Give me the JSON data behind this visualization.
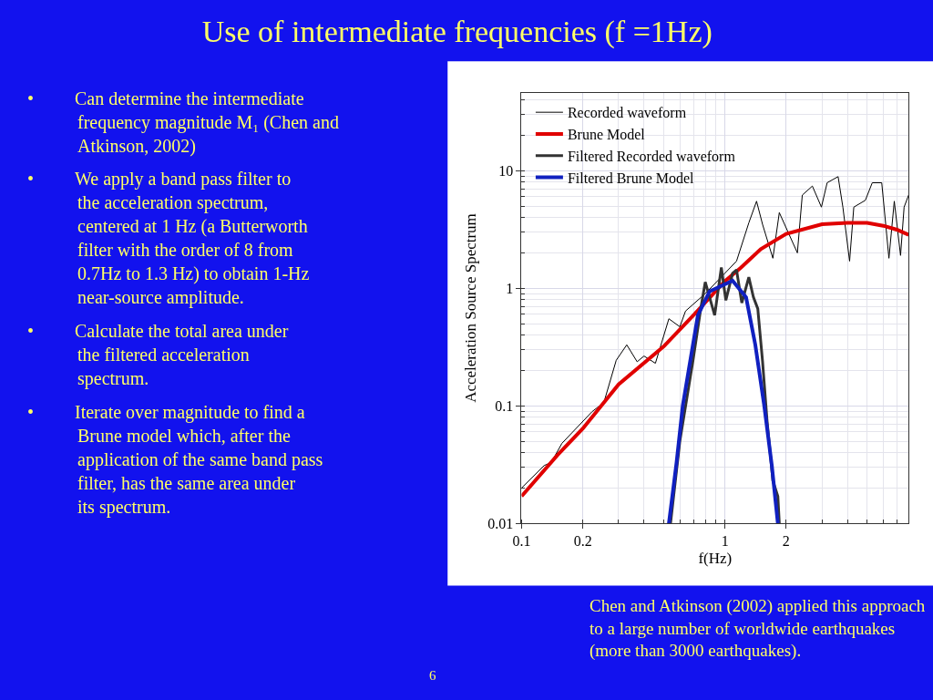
{
  "chart_data": {
    "type": "line",
    "title": "Use of intermediate frequencies (f =1Hz)",
    "xlabel": "f(Hz)",
    "ylabel": "Acceleration Source Spectrum",
    "log": "xy",
    "grid": true,
    "legend": "top left",
    "xlim": [
      0.1,
      8
    ],
    "xticks": [
      0.1,
      0.2,
      1,
      2
    ],
    "ylim": [
      0.01,
      46
    ],
    "yticks": [
      0.01,
      0.1,
      1,
      10
    ],
    "series": [
      {
        "name": "Recorded waveform",
        "color": "#000000",
        "x": [
          0.1,
          0.129,
          0.14,
          0.158,
          0.222,
          0.254,
          0.292,
          0.329,
          0.37,
          0.4,
          0.455,
          0.53,
          0.6,
          0.64,
          0.8,
          1.14,
          1.31,
          1.43,
          1.53,
          1.72,
          1.85,
          2.27,
          2.4,
          2.69,
          2.98,
          3.18,
          3.6,
          3.8,
          4.1,
          4.3,
          4.9,
          5.3,
          5.9,
          6.4,
          6.8,
          7.3,
          7.6,
          8.0
        ],
        "values": [
          0.02,
          0.031,
          0.033,
          0.048,
          0.089,
          0.107,
          0.244,
          0.33,
          0.237,
          0.265,
          0.23,
          0.55,
          0.47,
          0.64,
          0.9,
          1.7,
          3.6,
          5.5,
          3.5,
          1.8,
          4.4,
          2.0,
          6.2,
          7.4,
          4.9,
          7.9,
          8.9,
          4.9,
          1.7,
          4.9,
          5.6,
          7.9,
          7.9,
          1.8,
          5.5,
          1.9,
          4.9,
          6.2
        ]
      },
      {
        "name": "Brune Model",
        "color": "#e00000",
        "x": [
          0.1,
          0.15,
          0.2,
          0.3,
          0.5,
          0.7,
          1,
          1.2,
          1.5,
          2,
          3,
          4,
          5,
          6,
          7,
          8
        ],
        "values": [
          0.017,
          0.038,
          0.064,
          0.152,
          0.32,
          0.59,
          1.15,
          1.5,
          2.15,
          2.9,
          3.5,
          3.6,
          3.6,
          3.4,
          3.15,
          2.85
        ]
      },
      {
        "name": "Filtered Recorded waveform",
        "color": "#333333",
        "x": [
          0.54,
          0.6,
          0.698,
          0.76,
          0.8,
          0.89,
          0.96,
          1.01,
          1.09,
          1.14,
          1.21,
          1.31,
          1.38,
          1.45,
          1.53,
          1.61,
          1.72,
          1.82,
          1.85
        ],
        "values": [
          0.01,
          0.05,
          0.25,
          0.67,
          1.13,
          0.59,
          1.5,
          0.79,
          1.34,
          1.43,
          0.75,
          1.24,
          0.84,
          0.67,
          0.24,
          0.075,
          0.023,
          0.017,
          0.01
        ]
      },
      {
        "name": "Filtered Brune Model",
        "color": "#1020c0",
        "x": [
          0.53,
          0.578,
          0.62,
          0.664,
          0.736,
          0.84,
          1.09,
          1.27,
          1.41,
          1.56,
          1.7,
          1.82
        ],
        "values": [
          0.01,
          0.0329,
          0.1,
          0.204,
          0.59,
          0.94,
          1.16,
          0.84,
          0.33,
          0.1,
          0.031,
          0.01
        ]
      }
    ],
    "annotations": [
      "• Can determine the intermediate frequency magnitude M₁ (Chen and Atkinson, 2002)",
      "• We apply a band pass filter to the acceleration spectrum, centered at 1 Hz (a Butterworth filter with the order of 8 from 0.7Hz to 1.3 Hz) to obtain 1-Hz near-source amplitude.",
      "• Calculate the total area under the filtered acceleration spectrum.",
      "• Iterate over magnitude to find a Brune model which, after the application of the same band pass filter, has the same area under its spectrum.",
      "Chen and Atkinson (2002) applied this approach to a large number of worldwide earthquakes (more than 3000 earthquakes).",
      "6"
    ]
  }
}
